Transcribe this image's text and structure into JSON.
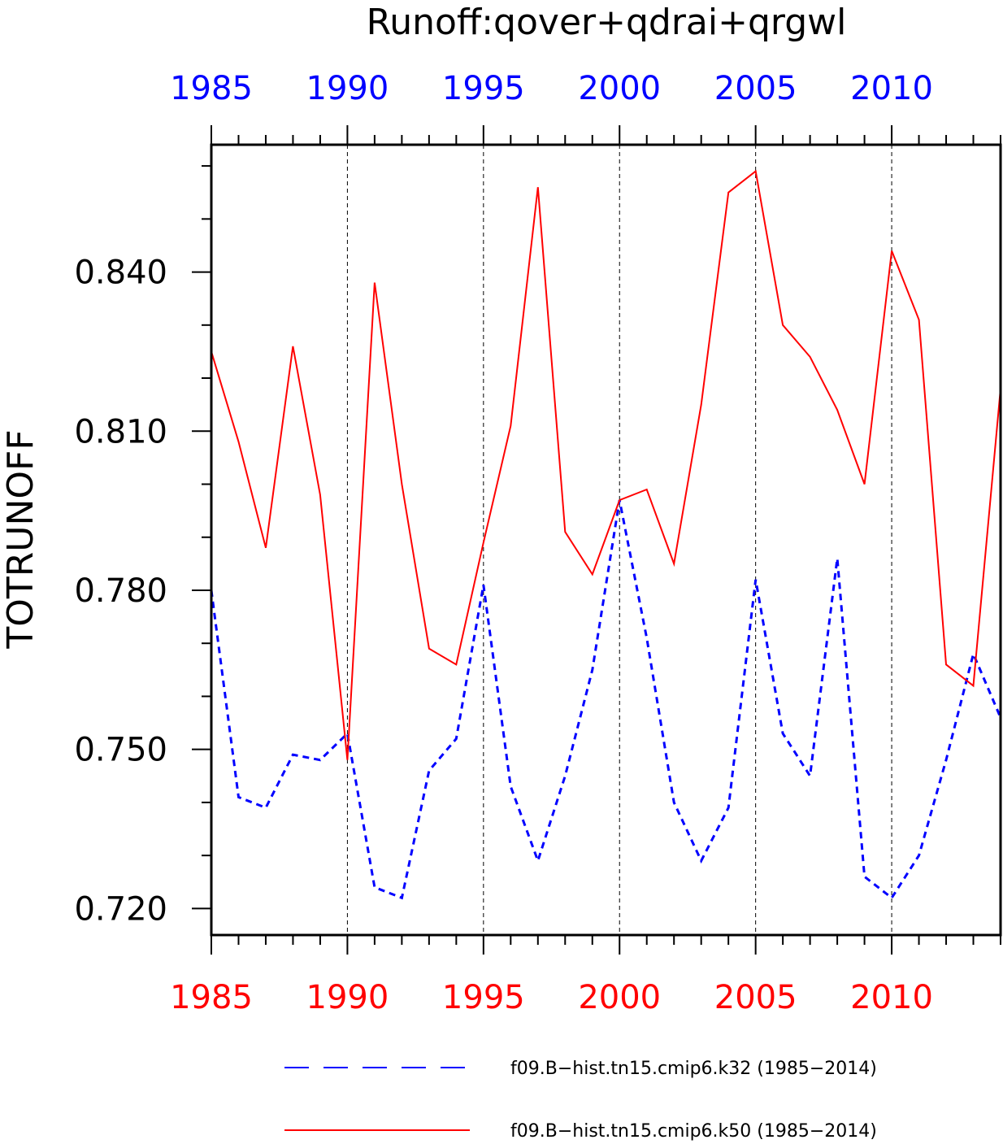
{
  "chart_data": {
    "type": "line",
    "title": "Runoff:qover+qdrai+qrgwl",
    "ylabel": "TOTRUNOFF",
    "xlabel": "",
    "xlim": [
      1985,
      2014
    ],
    "ylim": [
      0.715,
      0.864
    ],
    "x_ticks": [
      1985,
      1990,
      1995,
      2000,
      2005,
      2010
    ],
    "x_tick_labels": [
      "1985",
      "1990",
      "1995",
      "2000",
      "2005",
      "2010"
    ],
    "y_ticks": [
      0.72,
      0.75,
      0.78,
      0.81,
      0.84
    ],
    "y_tick_labels": [
      "0.720",
      "0.750",
      "0.780",
      "0.810",
      "0.840"
    ],
    "x": [
      1985,
      1986,
      1987,
      1988,
      1989,
      1990,
      1991,
      1992,
      1993,
      1994,
      1995,
      1996,
      1997,
      1998,
      1999,
      2000,
      2001,
      2002,
      2003,
      2004,
      2005,
      2006,
      2007,
      2008,
      2009,
      2010,
      2011,
      2012,
      2013,
      2014
    ],
    "series": [
      {
        "name": "f09.B−hist.tn15.cmip6.k32 (1985−2014)",
        "color": "#0000ff",
        "style": "dashed",
        "values": [
          0.78,
          0.741,
          0.739,
          0.749,
          0.748,
          0.753,
          0.724,
          0.722,
          0.746,
          0.752,
          0.781,
          0.743,
          0.729,
          0.745,
          0.765,
          0.797,
          0.771,
          0.74,
          0.729,
          0.739,
          0.782,
          0.753,
          0.745,
          0.786,
          0.726,
          0.722,
          0.73,
          0.748,
          0.768,
          0.756
        ]
      },
      {
        "name": "f09.B−hist.tn15.cmip6.k50 (1985−2014)",
        "color": "#ff0000",
        "style": "solid",
        "values": [
          0.825,
          0.808,
          0.788,
          0.826,
          0.798,
          0.748,
          0.838,
          0.8,
          0.769,
          0.766,
          0.789,
          0.811,
          0.856,
          0.791,
          0.783,
          0.797,
          0.799,
          0.785,
          0.815,
          0.855,
          0.859,
          0.83,
          0.824,
          0.814,
          0.8,
          0.844,
          0.831,
          0.766,
          0.762,
          0.818
        ]
      }
    ],
    "grid": "dashed vertical lines at major x ticks",
    "legend_placement": "bottom"
  }
}
